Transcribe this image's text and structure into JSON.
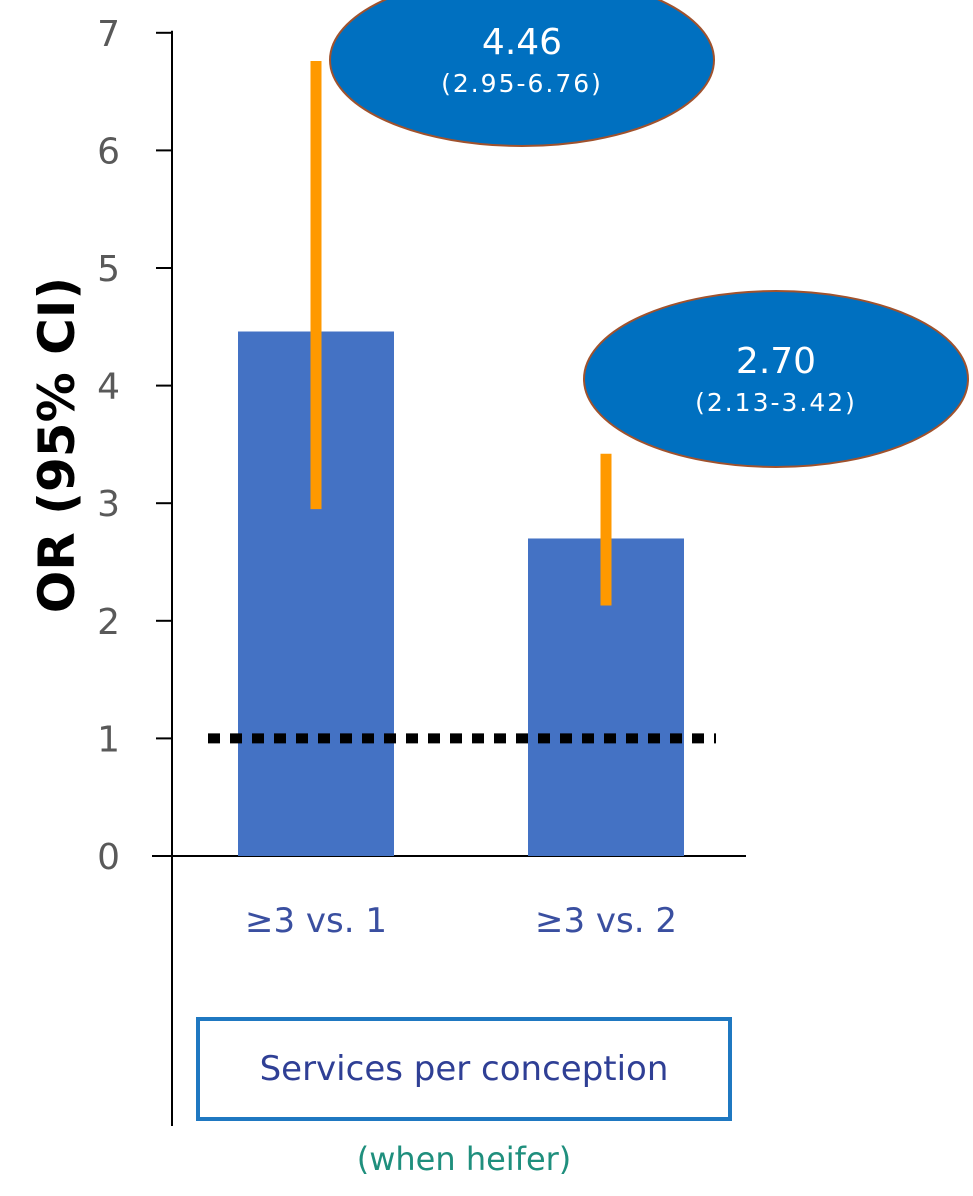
{
  "chart_data": {
    "type": "bar",
    "categories": [
      "≥3 vs. 1",
      "≥3 vs. 2"
    ],
    "values": [
      4.46,
      2.7
    ],
    "ci_low": [
      2.95,
      2.13
    ],
    "ci_high": [
      6.76,
      3.42
    ],
    "annotations": [
      {
        "main": "4.46",
        "ci": "(2.95-6.76)"
      },
      {
        "main": "2.70",
        "ci": "(2.13-3.42)"
      }
    ],
    "reference_line": 1,
    "ylabel": "OR (95% CI)",
    "ylim": [
      0,
      7
    ],
    "yticks": [
      "0",
      "1",
      "2",
      "3",
      "4",
      "5",
      "6",
      "7"
    ],
    "grid": false,
    "group_label": "Services per conception",
    "group_note": "(when heifer)",
    "colors": {
      "bar": "#4472c4",
      "error_bar": "#ff9900",
      "bubble_fill": "#0070c0",
      "bubble_stroke": "#a0522d",
      "reference_line": "#000000",
      "axis": "#000000"
    }
  }
}
